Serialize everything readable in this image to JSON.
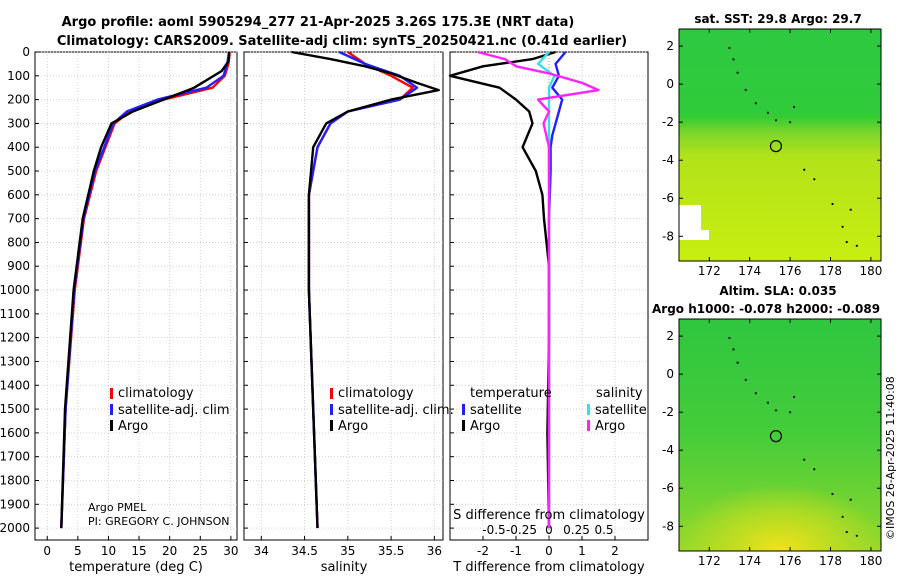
{
  "title": {
    "line1": "Argo profile: aoml 5905294_277 21-Apr-2025 3.26S 175.3E (NRT data)",
    "line2": "Climatology: CARS2009. Satellite-adj clim: synTS_20250421.nc (0.41d earlier)"
  },
  "colors": {
    "climatology": "#ff0000",
    "satellite": "#1f1fff",
    "argo": "#000000",
    "sal_satellite": "#33e0e8",
    "sal_argo": "#ff22ff"
  },
  "chart_data": [
    {
      "type": "line",
      "name": "temperature",
      "xlabel": "temperature (deg C)",
      "ylabel": "",
      "xlim": [
        -2,
        31
      ],
      "ylim": [
        2050,
        0
      ],
      "xticks": [
        0,
        5,
        10,
        15,
        20,
        25,
        30
      ],
      "yticks": [
        0,
        100,
        200,
        300,
        400,
        500,
        600,
        700,
        800,
        900,
        1000,
        1100,
        1200,
        1300,
        1400,
        1500,
        1600,
        1700,
        1800,
        1900,
        2000
      ],
      "grid": true,
      "legend": {
        "position": "lower-right",
        "entries": [
          "climatology",
          "satellite-adj. clim",
          "Argo"
        ]
      },
      "annotation": [
        "Argo PMEL",
        "PI: GREGORY C. JOHNSON"
      ],
      "series": [
        {
          "name": "climatology",
          "depth": [
            0,
            50,
            100,
            150,
            200,
            250,
            300,
            400,
            500,
            700,
            1000,
            1500,
            2000
          ],
          "values": [
            29.8,
            29.6,
            29.0,
            27.0,
            19.0,
            13.5,
            11.0,
            9.5,
            8.0,
            6.0,
            4.5,
            3.0,
            2.3
          ]
        },
        {
          "name": "satellite-adj. clim",
          "depth": [
            0,
            50,
            100,
            150,
            200,
            250,
            300,
            400,
            500,
            700,
            1000,
            1500,
            2000
          ],
          "values": [
            29.7,
            29.4,
            28.8,
            26.0,
            18.0,
            13.0,
            10.8,
            9.3,
            7.8,
            5.9,
            4.4,
            3.0,
            2.3
          ]
        },
        {
          "name": "Argo",
          "depth": [
            0,
            20,
            40,
            80,
            150,
            200,
            250,
            300,
            400,
            500,
            700,
            1000,
            1500,
            2000
          ],
          "values": [
            29.7,
            29.7,
            29.6,
            28.5,
            24.0,
            19.0,
            14.0,
            10.5,
            8.8,
            7.6,
            5.8,
            4.3,
            2.9,
            2.3
          ]
        }
      ]
    },
    {
      "type": "line",
      "name": "salinity",
      "xlabel": "salinity",
      "ylabel": "",
      "xlim": [
        33.8,
        36.1
      ],
      "ylim": [
        2050,
        0
      ],
      "xticks": [
        34,
        34.5,
        35,
        35.5,
        36
      ],
      "grid": true,
      "legend": {
        "position": "lower-right",
        "entries": [
          "climatology",
          "satellite-adj. clim.",
          "Argo"
        ]
      },
      "series": [
        {
          "name": "climatology",
          "depth": [
            0,
            50,
            100,
            150,
            200,
            250,
            300,
            400,
            600,
            1000,
            1500,
            2000
          ],
          "values": [
            35.0,
            35.2,
            35.5,
            35.75,
            35.6,
            35.0,
            34.8,
            34.65,
            34.55,
            34.55,
            34.6,
            34.65
          ]
        },
        {
          "name": "satellite-adj. clim.",
          "depth": [
            0,
            50,
            100,
            150,
            200,
            250,
            300,
            400,
            600,
            1000,
            1500,
            2000
          ],
          "values": [
            34.9,
            35.2,
            35.6,
            35.8,
            35.6,
            35.0,
            34.8,
            34.65,
            34.55,
            34.55,
            34.6,
            34.65
          ]
        },
        {
          "name": "Argo",
          "depth": [
            0,
            30,
            60,
            90,
            130,
            160,
            200,
            250,
            300,
            400,
            600,
            1000,
            1500,
            2000
          ],
          "values": [
            34.35,
            34.8,
            35.2,
            35.5,
            35.8,
            36.05,
            35.5,
            35.0,
            34.75,
            34.6,
            34.55,
            34.55,
            34.6,
            34.65
          ]
        }
      ]
    },
    {
      "type": "line",
      "name": "difference from climatology",
      "xlabel": "T difference from climatology",
      "xlabel_top": "S difference from climatology",
      "xlim_T": [
        -3,
        3
      ],
      "xticks_T": [
        -2,
        -1,
        0,
        1,
        2
      ],
      "xlim_S": [
        -0.9,
        0.9
      ],
      "xticks_S": [
        -0.5,
        -0.25,
        0,
        0.25,
        0.5
      ],
      "xticklabels_S": [
        "-0.5",
        "-0.25",
        "0",
        "0.25",
        "0.5"
      ],
      "ylim": [
        2050,
        0
      ],
      "grid": true,
      "legend": {
        "position": "lower",
        "group_labels": [
          "temperature",
          "salinity"
        ],
        "entries": [
          "satellite",
          "Argo",
          "satellite",
          "Argo"
        ]
      },
      "series": [
        {
          "name": "temperature satellite",
          "depth": [
            0,
            50,
            100,
            150,
            200,
            250,
            300,
            350,
            400,
            500,
            700,
            1000,
            2000
          ],
          "values": [
            0.5,
            0.2,
            0.3,
            0.1,
            0.4,
            0.3,
            0.2,
            0.1,
            0.05,
            0.05,
            0.0,
            0.0,
            0.0
          ]
        },
        {
          "name": "temperature Argo",
          "depth": [
            0,
            30,
            60,
            100,
            150,
            200,
            250,
            300,
            400,
            500,
            600,
            700,
            900,
            1200,
            1600,
            2000
          ],
          "values": [
            0.2,
            -0.5,
            -2.0,
            -3.0,
            -1.5,
            -1.0,
            -0.6,
            -0.5,
            -0.8,
            -0.4,
            -0.2,
            -0.15,
            0.0,
            0.0,
            -0.05,
            0.0
          ]
        },
        {
          "name": "salinity satellite",
          "depth": [
            0,
            50,
            100,
            150,
            200,
            250,
            300,
            400,
            600,
            1000,
            2000
          ],
          "values": [
            0.0,
            -0.1,
            0.05,
            0.0,
            0.0,
            0.0,
            0.0,
            0.0,
            0.0,
            0.0,
            0.0
          ]
        },
        {
          "name": "salinity Argo",
          "depth": [
            0,
            30,
            60,
            90,
            130,
            160,
            200,
            250,
            300,
            400,
            600,
            1000,
            1500,
            2000
          ],
          "values": [
            -0.65,
            -0.4,
            -0.3,
            0.0,
            0.3,
            0.45,
            -0.1,
            0.0,
            -0.05,
            0.0,
            0.0,
            0.0,
            0.0,
            0.0
          ]
        }
      ]
    },
    {
      "type": "heatmap",
      "name": "sat SST map",
      "title": "sat. SST: 29.8 Argo: 29.7",
      "xticks": [
        172,
        174,
        176,
        178,
        180
      ],
      "yticks": [
        2,
        0,
        -2,
        -4,
        -6,
        -8
      ],
      "xlim": [
        170.5,
        180.5
      ],
      "ylim": [
        -9.3,
        2.9
      ],
      "marker": {
        "lon": 175.3,
        "lat": -3.26
      }
    },
    {
      "type": "heatmap",
      "name": "altimetry SLA map",
      "title": "Altim. SLA: 0.035",
      "subtitle": "Argo h1000: -0.078 h2000: -0.089",
      "xticks": [
        172,
        174,
        176,
        178,
        180
      ],
      "yticks": [
        2,
        0,
        -2,
        -4,
        -6,
        -8
      ],
      "xlim": [
        170.5,
        180.5
      ],
      "ylim": [
        -9.3,
        2.9
      ],
      "marker": {
        "lon": 175.3,
        "lat": -3.26
      }
    }
  ],
  "credit": "©IMOS 26-Apr-2025 11:40:08"
}
